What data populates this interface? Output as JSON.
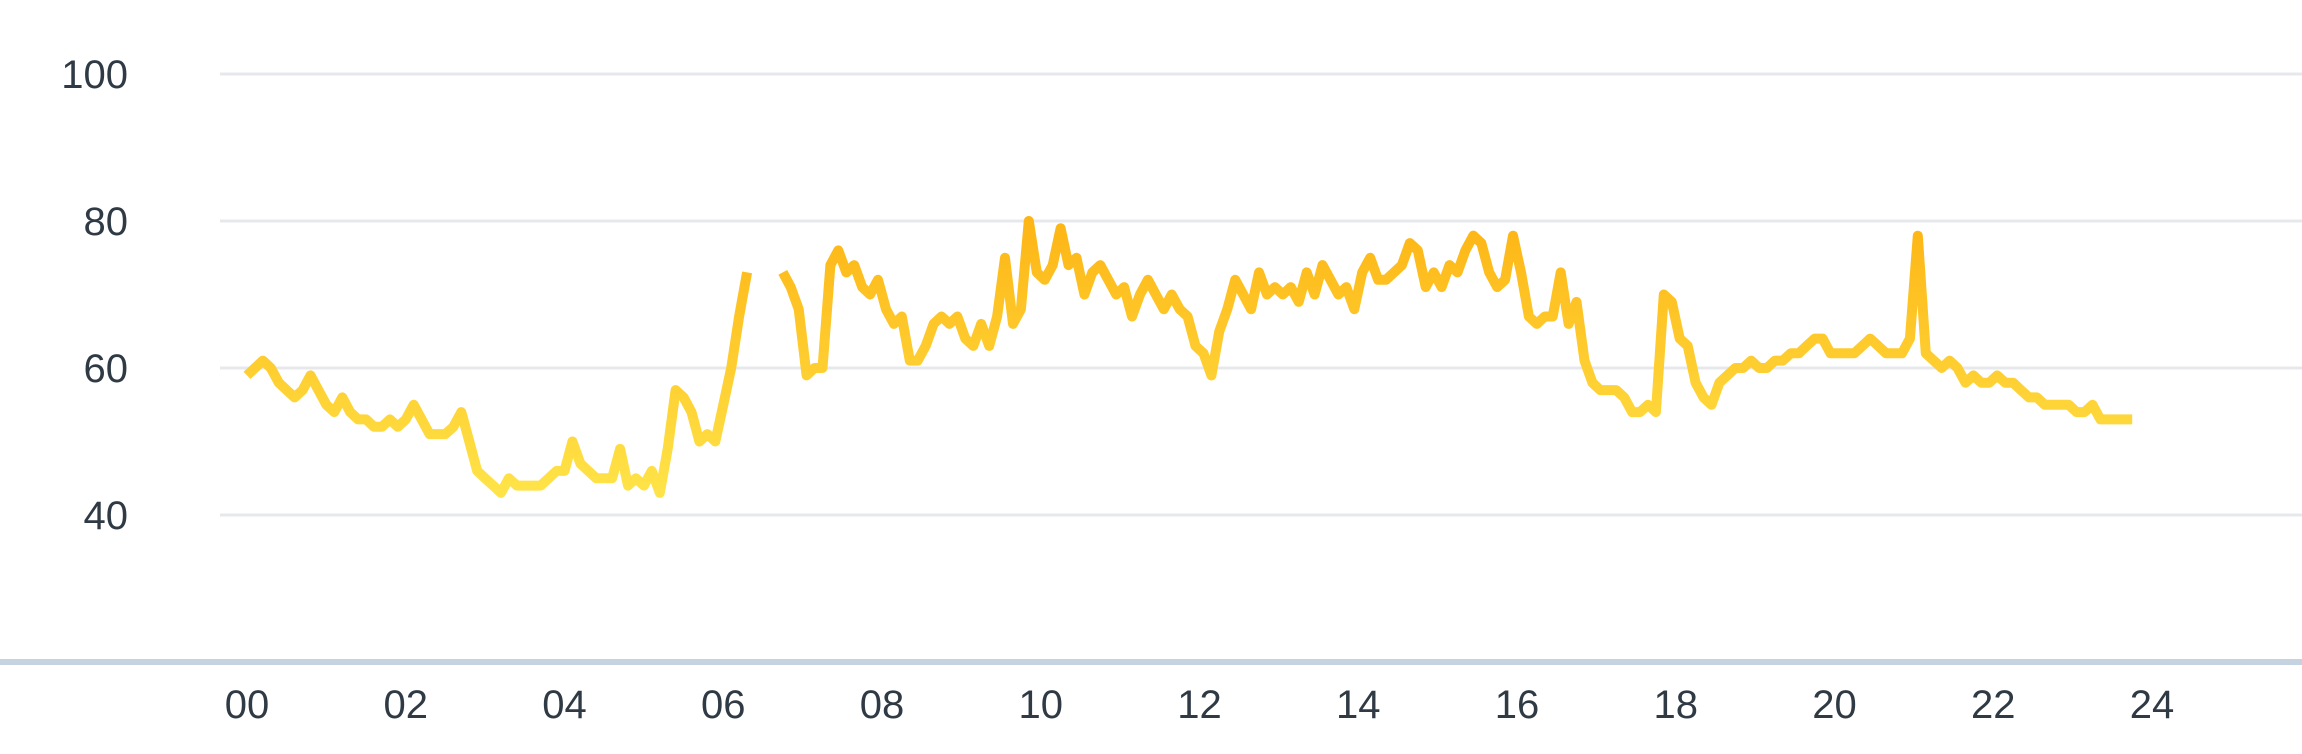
{
  "chart_data": {
    "type": "line",
    "title": "",
    "xlabel": "",
    "ylabel": "",
    "xlim": [
      0,
      24
    ],
    "ylim": [
      25,
      103
    ],
    "grid": true,
    "legend": "none",
    "y_ticks": [
      "40",
      "60",
      "80",
      "100"
    ],
    "x_ticks": [
      "00",
      "02",
      "04",
      "06",
      "08",
      "10",
      "12",
      "14",
      "16",
      "18",
      "20",
      "22",
      "24"
    ],
    "colors": {
      "line_low": "#FFE74C",
      "line_high": "#FDB515",
      "grid": "#E6E8EB",
      "baseline": "#C5D3E0",
      "text": "#2F3A45"
    },
    "series": [
      {
        "segments": [
          [
            [
              0.0,
              59
            ],
            [
              0.1,
              60
            ],
            [
              0.2,
              61
            ],
            [
              0.3,
              60
            ],
            [
              0.4,
              58
            ],
            [
              0.5,
              57
            ],
            [
              0.6,
              56
            ],
            [
              0.7,
              57
            ],
            [
              0.8,
              59
            ],
            [
              0.9,
              57
            ],
            [
              1.0,
              55
            ],
            [
              1.1,
              54
            ],
            [
              1.2,
              56
            ],
            [
              1.3,
              54
            ],
            [
              1.4,
              53
            ],
            [
              1.5,
              53
            ],
            [
              1.6,
              52
            ],
            [
              1.7,
              52
            ],
            [
              1.8,
              53
            ],
            [
              1.9,
              52
            ],
            [
              2.0,
              53
            ],
            [
              2.1,
              55
            ],
            [
              2.2,
              53
            ],
            [
              2.3,
              51
            ],
            [
              2.4,
              51
            ],
            [
              2.5,
              51
            ],
            [
              2.6,
              52
            ],
            [
              2.7,
              54
            ],
            [
              2.8,
              50
            ],
            [
              2.9,
              46
            ],
            [
              3.0,
              45
            ],
            [
              3.1,
              44
            ],
            [
              3.2,
              43
            ],
            [
              3.3,
              45
            ],
            [
              3.4,
              44
            ],
            [
              3.5,
              44
            ],
            [
              3.6,
              44
            ],
            [
              3.7,
              44
            ],
            [
              3.8,
              45
            ],
            [
              3.9,
              46
            ],
            [
              4.0,
              46
            ],
            [
              4.1,
              50
            ],
            [
              4.2,
              47
            ],
            [
              4.3,
              46
            ],
            [
              4.4,
              45
            ],
            [
              4.5,
              45
            ],
            [
              4.6,
              45
            ],
            [
              4.7,
              49
            ],
            [
              4.8,
              44
            ],
            [
              4.9,
              45
            ],
            [
              5.0,
              44
            ],
            [
              5.1,
              46
            ],
            [
              5.2,
              43
            ],
            [
              5.3,
              49
            ],
            [
              5.4,
              57
            ],
            [
              5.5,
              56
            ],
            [
              5.6,
              54
            ],
            [
              5.7,
              50
            ],
            [
              5.8,
              51
            ],
            [
              5.9,
              50
            ],
            [
              6.0,
              55
            ],
            [
              6.1,
              60
            ],
            [
              6.2,
              67
            ],
            [
              6.3,
              73
            ]
          ],
          [
            [
              6.75,
              73
            ],
            [
              6.85,
              71
            ],
            [
              6.95,
              68
            ],
            [
              7.05,
              59
            ],
            [
              7.15,
              60
            ],
            [
              7.25,
              60
            ],
            [
              7.35,
              74
            ],
            [
              7.45,
              76
            ],
            [
              7.55,
              73
            ],
            [
              7.65,
              74
            ],
            [
              7.75,
              71
            ],
            [
              7.85,
              70
            ],
            [
              7.95,
              72
            ],
            [
              8.05,
              68
            ],
            [
              8.15,
              66
            ],
            [
              8.25,
              67
            ],
            [
              8.35,
              61
            ],
            [
              8.45,
              61
            ],
            [
              8.55,
              63
            ],
            [
              8.65,
              66
            ],
            [
              8.75,
              67
            ],
            [
              8.85,
              66
            ],
            [
              8.95,
              67
            ],
            [
              9.05,
              64
            ],
            [
              9.15,
              63
            ],
            [
              9.25,
              66
            ],
            [
              9.35,
              63
            ],
            [
              9.45,
              67
            ],
            [
              9.55,
              75
            ],
            [
              9.65,
              66
            ],
            [
              9.75,
              68
            ],
            [
              9.85,
              80
            ],
            [
              9.95,
              73
            ],
            [
              10.05,
              72
            ],
            [
              10.15,
              74
            ],
            [
              10.25,
              79
            ],
            [
              10.35,
              74
            ],
            [
              10.45,
              75
            ],
            [
              10.55,
              70
            ],
            [
              10.65,
              73
            ],
            [
              10.75,
              74
            ],
            [
              10.85,
              72
            ],
            [
              10.95,
              70
            ],
            [
              11.05,
              71
            ],
            [
              11.15,
              67
            ],
            [
              11.25,
              70
            ],
            [
              11.35,
              72
            ],
            [
              11.45,
              70
            ],
            [
              11.55,
              68
            ],
            [
              11.65,
              70
            ],
            [
              11.75,
              68
            ],
            [
              11.85,
              67
            ],
            [
              11.95,
              63
            ],
            [
              12.05,
              62
            ],
            [
              12.15,
              59
            ],
            [
              12.25,
              65
            ],
            [
              12.35,
              68
            ],
            [
              12.45,
              72
            ],
            [
              12.55,
              70
            ],
            [
              12.65,
              68
            ],
            [
              12.75,
              73
            ],
            [
              12.85,
              70
            ],
            [
              12.95,
              71
            ],
            [
              13.05,
              70
            ],
            [
              13.15,
              71
            ],
            [
              13.25,
              69
            ],
            [
              13.35,
              73
            ],
            [
              13.45,
              70
            ],
            [
              13.55,
              74
            ],
            [
              13.65,
              72
            ],
            [
              13.75,
              70
            ],
            [
              13.85,
              71
            ],
            [
              13.95,
              68
            ],
            [
              14.05,
              73
            ],
            [
              14.15,
              75
            ],
            [
              14.25,
              72
            ],
            [
              14.35,
              72
            ],
            [
              14.45,
              73
            ],
            [
              14.55,
              74
            ],
            [
              14.65,
              77
            ],
            [
              14.75,
              76
            ],
            [
              14.85,
              71
            ],
            [
              14.95,
              73
            ],
            [
              15.05,
              71
            ],
            [
              15.15,
              74
            ],
            [
              15.25,
              73
            ],
            [
              15.35,
              76
            ],
            [
              15.45,
              78
            ],
            [
              15.55,
              77
            ],
            [
              15.65,
              73
            ],
            [
              15.75,
              71
            ],
            [
              15.85,
              72
            ],
            [
              15.95,
              78
            ],
            [
              16.05,
              73
            ],
            [
              16.15,
              67
            ],
            [
              16.25,
              66
            ],
            [
              16.35,
              67
            ],
            [
              16.45,
              67
            ],
            [
              16.55,
              73
            ],
            [
              16.65,
              66
            ],
            [
              16.75,
              69
            ],
            [
              16.85,
              61
            ],
            [
              16.95,
              58
            ],
            [
              17.05,
              57
            ],
            [
              17.15,
              57
            ],
            [
              17.25,
              57
            ],
            [
              17.35,
              56
            ],
            [
              17.45,
              54
            ],
            [
              17.55,
              54
            ],
            [
              17.65,
              55
            ],
            [
              17.75,
              54
            ],
            [
              17.85,
              70
            ],
            [
              17.95,
              69
            ],
            [
              18.05,
              64
            ],
            [
              18.15,
              63
            ],
            [
              18.25,
              58
            ],
            [
              18.35,
              56
            ],
            [
              18.45,
              55
            ],
            [
              18.55,
              58
            ],
            [
              18.65,
              59
            ],
            [
              18.75,
              60
            ],
            [
              18.85,
              60
            ],
            [
              18.95,
              61
            ],
            [
              19.05,
              60
            ],
            [
              19.15,
              60
            ],
            [
              19.25,
              61
            ],
            [
              19.35,
              61
            ],
            [
              19.45,
              62
            ],
            [
              19.55,
              62
            ],
            [
              19.65,
              63
            ],
            [
              19.75,
              64
            ],
            [
              19.85,
              64
            ],
            [
              19.95,
              62
            ],
            [
              20.05,
              62
            ],
            [
              20.15,
              62
            ],
            [
              20.25,
              62
            ],
            [
              20.35,
              63
            ],
            [
              20.45,
              64
            ],
            [
              20.55,
              63
            ],
            [
              20.65,
              62
            ],
            [
              20.75,
              62
            ],
            [
              20.85,
              62
            ],
            [
              20.95,
              64
            ],
            [
              21.05,
              78
            ],
            [
              21.15,
              62
            ],
            [
              21.25,
              61
            ],
            [
              21.35,
              60
            ],
            [
              21.45,
              61
            ],
            [
              21.55,
              60
            ],
            [
              21.65,
              58
            ],
            [
              21.75,
              59
            ],
            [
              21.85,
              58
            ],
            [
              21.95,
              58
            ],
            [
              22.05,
              59
            ],
            [
              22.15,
              58
            ],
            [
              22.25,
              58
            ],
            [
              22.35,
              57
            ],
            [
              22.45,
              56
            ],
            [
              22.55,
              56
            ],
            [
              22.65,
              55
            ],
            [
              22.75,
              55
            ],
            [
              22.85,
              55
            ],
            [
              22.95,
              55
            ],
            [
              23.05,
              54
            ],
            [
              23.15,
              54
            ],
            [
              23.25,
              55
            ],
            [
              23.35,
              53
            ],
            [
              23.45,
              53
            ],
            [
              23.55,
              53
            ],
            [
              23.65,
              53
            ],
            [
              23.75,
              53
            ]
          ]
        ]
      }
    ]
  }
}
